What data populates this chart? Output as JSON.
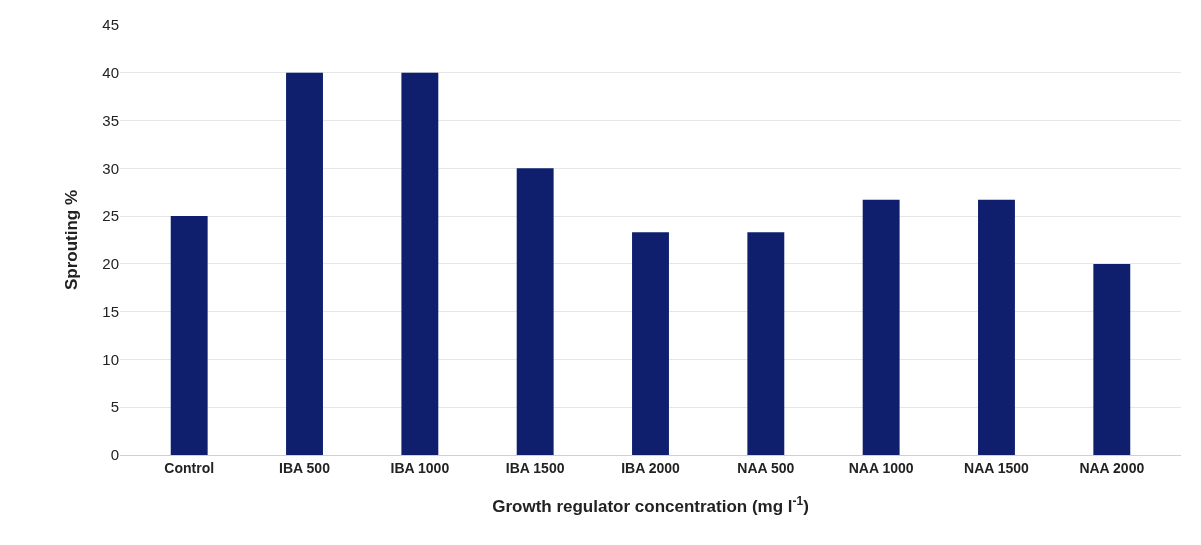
{
  "chart_data": {
    "type": "bar",
    "xlabel": "Growth regulator concentration (mg l$^{-1}$)",
    "ylabel": "Sprouting %",
    "categories": [
      "Control",
      "IBA 500",
      "IBA 1000",
      "IBA 1500",
      "IBA 2000",
      "NAA 500",
      "NAA 1000",
      "NAA 1500",
      "NAA 2000"
    ],
    "values": [
      25,
      40,
      40,
      30,
      23.3,
      23.3,
      26.7,
      26.7,
      20
    ],
    "color": "#0f1f6e",
    "ylim": [
      0,
      45
    ],
    "yticks": [
      0,
      5,
      10,
      15,
      20,
      25,
      30,
      35,
      40,
      45
    ],
    "grid": "y"
  }
}
